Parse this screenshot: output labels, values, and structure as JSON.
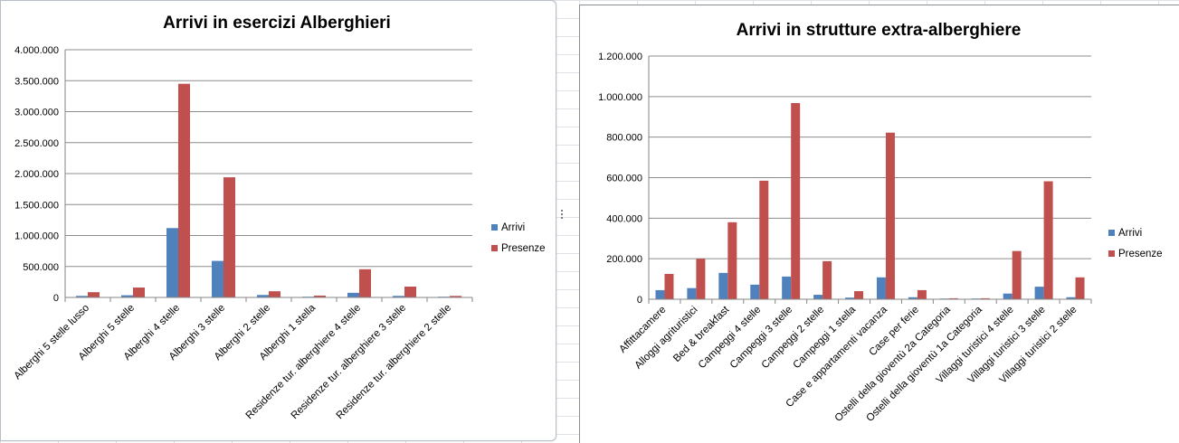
{
  "chart_data": [
    {
      "type": "bar",
      "title": "Arrivi in esercizi Alberghieri",
      "xlabel": "",
      "ylabel": "",
      "ylim": [
        0,
        4000000
      ],
      "yticks": [
        0,
        500000,
        1000000,
        1500000,
        2000000,
        2500000,
        3000000,
        3500000,
        4000000
      ],
      "ytick_labels": [
        "0",
        "500.000",
        "1.000.000",
        "1.500.000",
        "2.000.000",
        "2.500.000",
        "3.000.000",
        "3.500.000",
        "4.000.000"
      ],
      "grid": true,
      "legend_position": "right",
      "categories": [
        "Alberghi 5 stelle lusso",
        "Alberghi 5 stelle",
        "Alberghi 4 stelle",
        "Alberghi 3 stelle",
        "Alberghi 2 stelle",
        "Alberghi 1 stella",
        "Residenze tur. alberghiere 4 stelle",
        "Residenze tur. alberghiere 3 stelle",
        "Residenze tur. alberghiere 2 stelle"
      ],
      "series": [
        {
          "name": "Arrivi",
          "color": "#4f81bd",
          "values": [
            25000,
            35000,
            1120000,
            590000,
            40000,
            12000,
            75000,
            25000,
            8000
          ]
        },
        {
          "name": "Presenze",
          "color": "#c0504d",
          "values": [
            85000,
            160000,
            3450000,
            1940000,
            100000,
            30000,
            455000,
            175000,
            25000
          ]
        }
      ]
    },
    {
      "type": "bar",
      "title": "Arrivi in strutture extra-alberghiere",
      "xlabel": "",
      "ylabel": "",
      "ylim": [
        0,
        1200000
      ],
      "yticks": [
        0,
        200000,
        400000,
        600000,
        800000,
        1000000,
        1200000
      ],
      "ytick_labels": [
        "0",
        "200.000",
        "400.000",
        "600.000",
        "800.000",
        "1.000.000",
        "1.200.000"
      ],
      "grid": true,
      "legend_position": "right",
      "categories": [
        "Affittacamere",
        "Alloggi agrituristici",
        "Bed & breakfast",
        "Campeggi 4 stelle",
        "Campeggi 3 stelle",
        "Campeggi 2 stelle",
        "Campeggi 1 stella",
        "Case e appartamenti vacanza",
        "Case per ferie",
        "Ostelli della gioventù 2a Categoria",
        "Ostelli della gioventù 1a Categoria",
        "Villaggi turistici 4 stelle",
        "Villaggi turistici 3 stelle",
        "Villaggi turistici 2 stelle"
      ],
      "series": [
        {
          "name": "Arrivi",
          "color": "#4f81bd",
          "values": [
            45000,
            55000,
            130000,
            72000,
            112000,
            22000,
            8000,
            108000,
            10000,
            2000,
            2000,
            28000,
            62000,
            10000
          ]
        },
        {
          "name": "Presenze",
          "color": "#c0504d",
          "values": [
            125000,
            200000,
            380000,
            585000,
            968000,
            188000,
            40000,
            822000,
            45000,
            5000,
            5000,
            238000,
            582000,
            108000
          ]
        }
      ]
    }
  ]
}
